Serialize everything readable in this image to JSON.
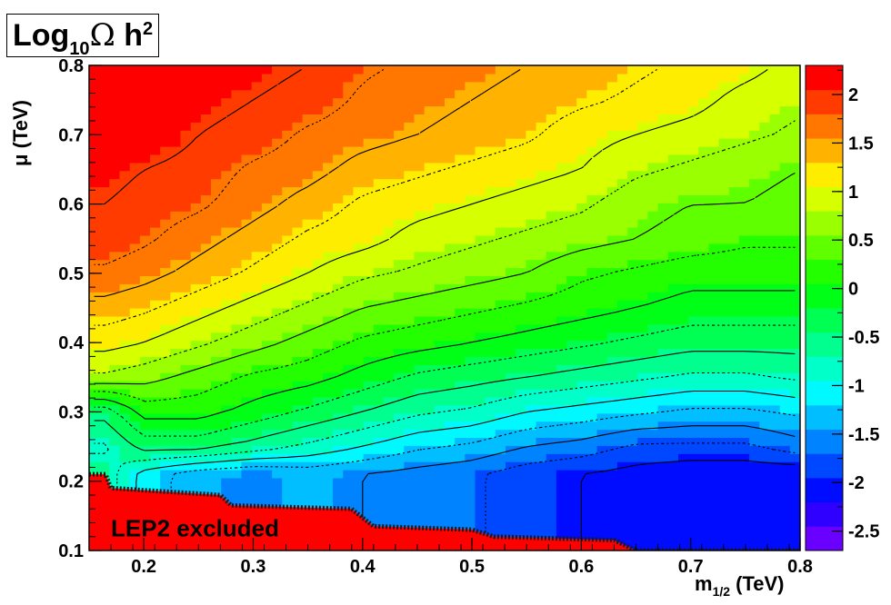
{
  "chart_data": {
    "type": "heatmap",
    "title": {
      "prefix": "Log",
      "subscript": "10",
      "symbol": "Ω",
      "suffix": " h",
      "superscript": "2"
    },
    "xlabel": {
      "main": "m",
      "subscript": "1/2",
      "unit": " (TeV)"
    },
    "ylabel": "μ (TeV)",
    "xlim": [
      0.15,
      0.8
    ],
    "ylim": [
      0.1,
      0.8
    ],
    "x_ticks": [
      "0.2",
      "0.3",
      "0.4",
      "0.5",
      "0.6",
      "0.7",
      "0.8"
    ],
    "y_ticks": [
      "0.1",
      "0.2",
      "0.3",
      "0.4",
      "0.5",
      "0.6",
      "0.7",
      "0.8"
    ],
    "colorbar": {
      "range": [
        -2.7,
        2.3
      ],
      "ticks": [
        "2",
        "1.5",
        "1",
        "0.5",
        "0",
        "-0.5",
        "-1",
        "-1.5",
        "-2",
        "-2.5"
      ],
      "levels": 20
    },
    "grid": false,
    "legend": "none",
    "z_grid": {
      "x": [
        0.165,
        0.2,
        0.25,
        0.3,
        0.35,
        0.4,
        0.45,
        0.5,
        0.55,
        0.6,
        0.65,
        0.7,
        0.75,
        0.8
      ],
      "y": [
        0.21,
        0.25,
        0.3,
        0.35,
        0.4,
        0.45,
        0.5,
        0.55,
        0.6,
        0.65,
        0.7,
        0.75,
        0.8
      ],
      "z": [
        [
          -0.6,
          -1.1,
          -1.4,
          -1.5,
          -1.4,
          -1.5,
          -1.6,
          -1.7,
          -1.9,
          -2.0,
          -2.1,
          -2.2,
          -2.2,
          -2.2
        ],
        [
          -0.8,
          -0.4,
          -0.4,
          -0.6,
          -0.8,
          -1.0,
          -1.2,
          -1.3,
          -1.5,
          -1.6,
          -1.8,
          -1.8,
          -1.8,
          -1.6
        ],
        [
          -0.4,
          0.1,
          0.1,
          -0.1,
          -0.3,
          -0.5,
          -0.7,
          -0.8,
          -1.0,
          -1.1,
          -1.2,
          -1.3,
          -1.3,
          -1.2
        ],
        [
          0.7,
          0.6,
          0.4,
          0.2,
          0.1,
          -0.1,
          -0.3,
          -0.4,
          -0.5,
          -0.6,
          -0.7,
          -0.8,
          -0.8,
          -0.7
        ],
        [
          1.1,
          1.0,
          0.8,
          0.6,
          0.4,
          0.2,
          0.1,
          0.0,
          -0.1,
          -0.2,
          -0.3,
          -0.4,
          -0.4,
          -0.4
        ],
        [
          1.4,
          1.3,
          1.1,
          0.9,
          0.7,
          0.5,
          0.4,
          0.3,
          0.2,
          0.1,
          0.0,
          -0.1,
          -0.1,
          -0.1
        ],
        [
          1.7,
          1.6,
          1.4,
          1.2,
          1.0,
          0.8,
          0.7,
          0.6,
          0.5,
          0.3,
          0.2,
          0.1,
          0.1,
          0.1
        ],
        [
          1.9,
          1.8,
          1.6,
          1.4,
          1.2,
          1.1,
          0.9,
          0.8,
          0.7,
          0.6,
          0.5,
          0.4,
          0.3,
          0.3
        ],
        [
          2.0,
          1.9,
          1.8,
          1.6,
          1.4,
          1.2,
          1.1,
          1.0,
          0.9,
          0.8,
          0.6,
          0.5,
          0.5,
          0.4
        ],
        [
          2.1,
          2.0,
          1.9,
          1.7,
          1.6,
          1.4,
          1.3,
          1.2,
          1.1,
          1.0,
          0.8,
          0.7,
          0.6,
          0.5
        ],
        [
          2.2,
          2.2,
          2.0,
          1.9,
          1.7,
          1.6,
          1.5,
          1.4,
          1.3,
          1.1,
          1.0,
          0.9,
          0.8,
          0.7
        ],
        [
          2.3,
          2.3,
          2.1,
          2.0,
          1.9,
          1.7,
          1.6,
          1.5,
          1.4,
          1.3,
          1.2,
          1.1,
          0.9,
          0.8
        ],
        [
          2.3,
          2.3,
          2.2,
          2.1,
          2.0,
          1.8,
          1.7,
          1.6,
          1.5,
          1.4,
          1.3,
          1.2,
          1.1,
          0.9
        ]
      ]
    },
    "excluded_region": {
      "label": "LEP2 excluded",
      "boundary": [
        [
          0.15,
          0.21
        ],
        [
          0.165,
          0.21
        ],
        [
          0.17,
          0.19
        ],
        [
          0.27,
          0.18
        ],
        [
          0.28,
          0.165
        ],
        [
          0.39,
          0.16
        ],
        [
          0.41,
          0.135
        ],
        [
          0.5,
          0.13
        ],
        [
          0.52,
          0.12
        ],
        [
          0.63,
          0.115
        ],
        [
          0.65,
          0.1
        ],
        [
          0.8,
          0.1
        ]
      ]
    }
  }
}
